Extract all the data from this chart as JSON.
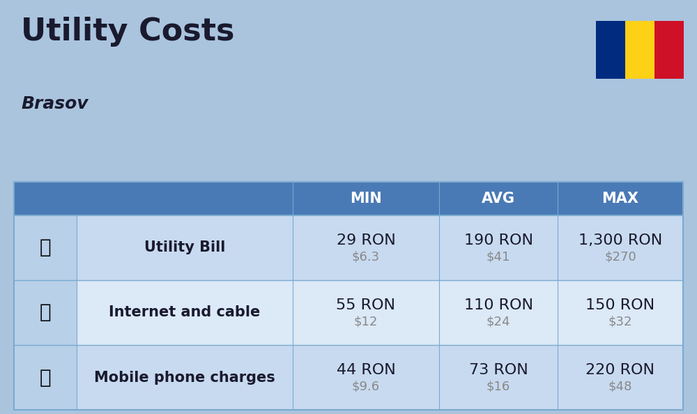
{
  "title": "Utility Costs",
  "subtitle": "Brasov",
  "background_color": "#aac4de",
  "header_color": "#4a7ab5",
  "header_text_color": "#ffffff",
  "row_colors": [
    "#c8daf0",
    "#dce9f7"
  ],
  "icon_col_color": "#b8d0e8",
  "table_line_color": "#7aaad0",
  "rows": [
    {
      "label": "Utility Bill",
      "min_ron": "29 RON",
      "min_usd": "$6.3",
      "avg_ron": "190 RON",
      "avg_usd": "$41",
      "max_ron": "1,300 RON",
      "max_usd": "$270"
    },
    {
      "label": "Internet and cable",
      "min_ron": "55 RON",
      "min_usd": "$12",
      "avg_ron": "110 RON",
      "avg_usd": "$24",
      "max_ron": "150 RON",
      "max_usd": "$32"
    },
    {
      "label": "Mobile phone charges",
      "min_ron": "44 RON",
      "min_usd": "$9.6",
      "avg_ron": "73 RON",
      "avg_usd": "$16",
      "max_ron": "220 RON",
      "max_usd": "$48"
    }
  ],
  "flag_colors": [
    "#002b7f",
    "#fcd116",
    "#ce1126"
  ],
  "title_fontsize": 32,
  "subtitle_fontsize": 18,
  "header_fontsize": 15,
  "label_fontsize": 15,
  "value_fontsize": 16,
  "subvalue_fontsize": 13
}
